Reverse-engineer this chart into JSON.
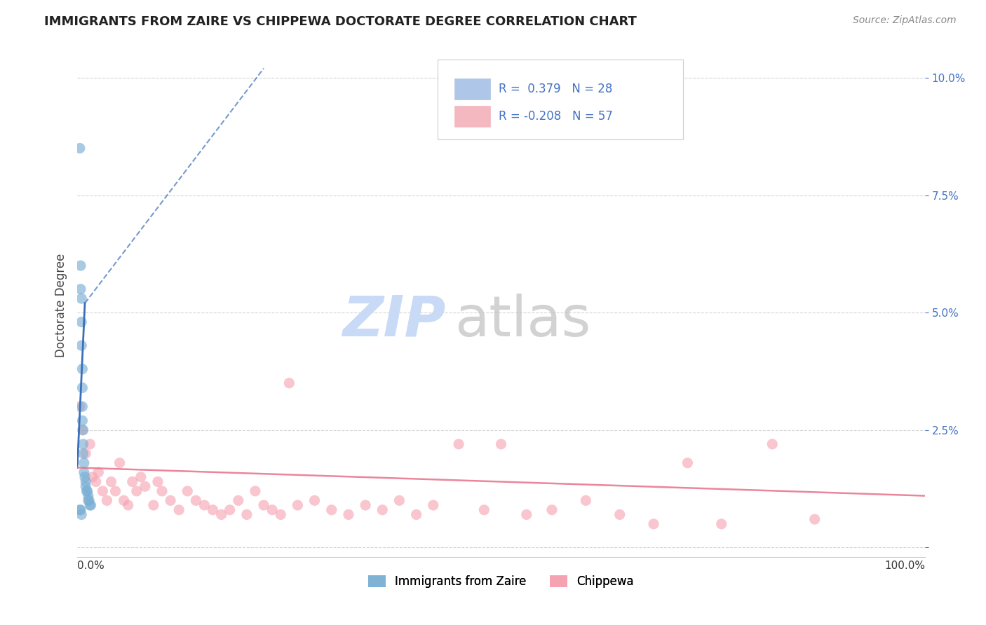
{
  "title": "IMMIGRANTS FROM ZAIRE VS CHIPPEWA DOCTORATE DEGREE CORRELATION CHART",
  "source_text": "Source: ZipAtlas.com",
  "ylabel": "Doctorate Degree",
  "xlim": [
    0.0,
    1.0
  ],
  "ylim": [
    -0.002,
    0.105
  ],
  "y_ticks": [
    0.0,
    0.025,
    0.05,
    0.075,
    0.1
  ],
  "blue_scatter_x": [
    0.003,
    0.004,
    0.004,
    0.005,
    0.005,
    0.005,
    0.006,
    0.006,
    0.006,
    0.006,
    0.007,
    0.007,
    0.007,
    0.008,
    0.008,
    0.009,
    0.01,
    0.01,
    0.011,
    0.012,
    0.013,
    0.013,
    0.014,
    0.015,
    0.016,
    0.003,
    0.004,
    0.005
  ],
  "blue_scatter_y": [
    0.085,
    0.06,
    0.055,
    0.053,
    0.048,
    0.043,
    0.038,
    0.034,
    0.03,
    0.027,
    0.025,
    0.022,
    0.02,
    0.018,
    0.016,
    0.015,
    0.014,
    0.013,
    0.012,
    0.012,
    0.011,
    0.01,
    0.01,
    0.009,
    0.009,
    0.008,
    0.008,
    0.007
  ],
  "pink_scatter_x": [
    0.003,
    0.006,
    0.01,
    0.015,
    0.018,
    0.022,
    0.025,
    0.03,
    0.035,
    0.04,
    0.045,
    0.05,
    0.055,
    0.06,
    0.065,
    0.07,
    0.075,
    0.08,
    0.09,
    0.095,
    0.1,
    0.11,
    0.12,
    0.13,
    0.14,
    0.15,
    0.16,
    0.17,
    0.18,
    0.19,
    0.2,
    0.21,
    0.22,
    0.23,
    0.24,
    0.25,
    0.26,
    0.28,
    0.3,
    0.32,
    0.34,
    0.36,
    0.38,
    0.4,
    0.42,
    0.45,
    0.48,
    0.5,
    0.53,
    0.56,
    0.6,
    0.64,
    0.68,
    0.72,
    0.76,
    0.82,
    0.87
  ],
  "pink_scatter_y": [
    0.03,
    0.025,
    0.02,
    0.022,
    0.015,
    0.014,
    0.016,
    0.012,
    0.01,
    0.014,
    0.012,
    0.018,
    0.01,
    0.009,
    0.014,
    0.012,
    0.015,
    0.013,
    0.009,
    0.014,
    0.012,
    0.01,
    0.008,
    0.012,
    0.01,
    0.009,
    0.008,
    0.007,
    0.008,
    0.01,
    0.007,
    0.012,
    0.009,
    0.008,
    0.007,
    0.035,
    0.009,
    0.01,
    0.008,
    0.007,
    0.009,
    0.008,
    0.01,
    0.007,
    0.009,
    0.022,
    0.008,
    0.022,
    0.007,
    0.008,
    0.01,
    0.007,
    0.005,
    0.018,
    0.005,
    0.022,
    0.006
  ],
  "blue_solid_line_x": [
    0.0,
    0.009
  ],
  "blue_solid_line_y": [
    0.017,
    0.052
  ],
  "blue_dashed_line_x": [
    0.009,
    0.22
  ],
  "blue_dashed_line_y": [
    0.052,
    0.102
  ],
  "pink_line_x": [
    0.0,
    1.0
  ],
  "pink_line_y": [
    0.017,
    0.011
  ],
  "blue_scatter_color": "#7aafd4",
  "pink_scatter_color": "#f5a0b0",
  "blue_line_color": "#3b6fba",
  "pink_line_color": "#e8708a",
  "legend_blue_color": "#aec6e8",
  "legend_pink_color": "#f4b8c1",
  "legend_text_color": "#4472c4",
  "grid_color": "#d0d0d0",
  "bg_color": "#ffffff",
  "title_color": "#222222",
  "source_color": "#888888",
  "watermark_zip_color": "#c8daf5",
  "watermark_atlas_color": "#c0c0c0"
}
